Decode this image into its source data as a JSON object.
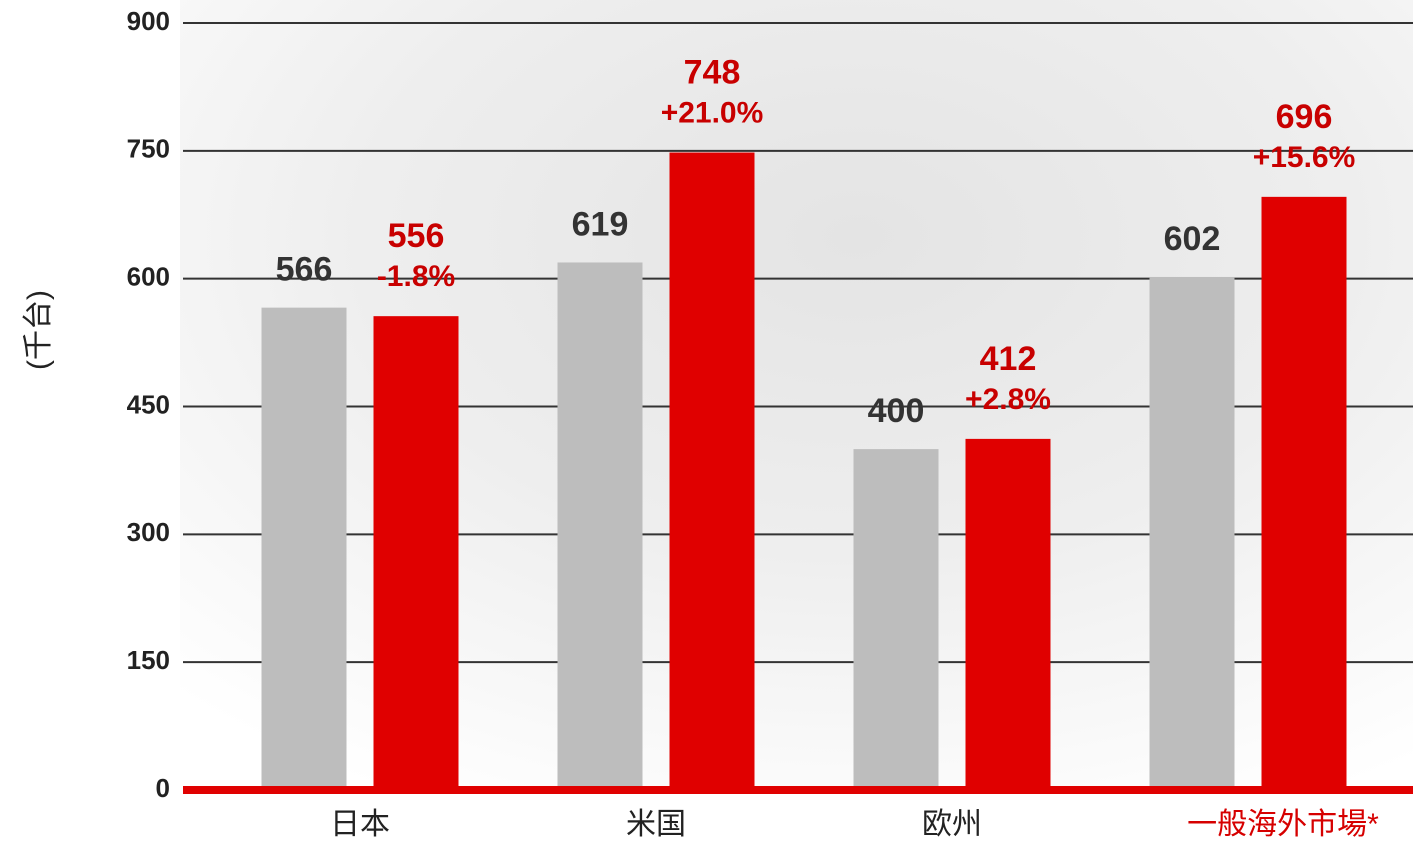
{
  "chart_data": {
    "type": "bar",
    "y_label": "(千台)",
    "categories": [
      "日本",
      "米国",
      "欧州",
      "一般海外市場*"
    ],
    "category_colors": [
      "#222222",
      "#222222",
      "#222222",
      "#d60000"
    ],
    "series": [
      {
        "color": "#bdbdbd",
        "label_color": "#333333",
        "values": [
          566,
          619,
          400,
          602
        ]
      },
      {
        "color": "#e00000",
        "label_color": "#c80000",
        "values": [
          556,
          748,
          412,
          696
        ],
        "changes": [
          "-1.8%",
          "+21.0%",
          "+2.8%",
          "+15.6%"
        ]
      }
    ],
    "ylim": [
      0,
      900
    ],
    "yticks": [
      0,
      150,
      300,
      450,
      600,
      750,
      900
    ],
    "grid": true
  }
}
